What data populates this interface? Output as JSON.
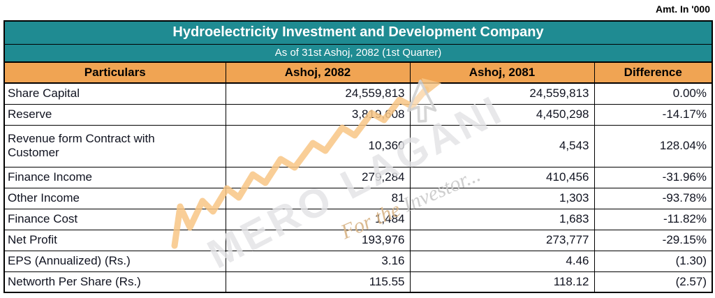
{
  "meta": {
    "amount_note": "Amt. In '000"
  },
  "table": {
    "title": "Hydroelectricity Investment and Development Company",
    "subtitle": "As of 31st Ashoj, 2082 (1st Quarter)",
    "columns": [
      "Particulars",
      "Ashoj, 2082",
      "Ashoj, 2081",
      "Difference"
    ],
    "rows": [
      {
        "label": "Share Capital",
        "v2082": "24,559,813",
        "v2081": "24,559,813",
        "diff": "0.00%"
      },
      {
        "label": "Reserve",
        "v2082": "3,819,608",
        "v2081": "4,450,298",
        "diff": "-14.17%"
      },
      {
        "label": "Revenue form Contract with Customer",
        "v2082": "10,360",
        "v2081": "4,543",
        "diff": "128.04%"
      },
      {
        "label": "Finance Income",
        "v2082": "279,284",
        "v2081": "410,456",
        "diff": "-31.96%"
      },
      {
        "label": "Other Income",
        "v2082": "81",
        "v2081": "1,303",
        "diff": "-93.78%"
      },
      {
        "label": "Finance Cost",
        "v2082": "1,484",
        "v2081": "1,683",
        "diff": "-11.82%"
      },
      {
        "label": "Net Profit",
        "v2082": "193,976",
        "v2081": "273,777",
        "diff": "-29.15%"
      },
      {
        "label": "EPS (Annualized) (Rs.)",
        "v2082": "3.16",
        "v2081": "4.46",
        "diff": "(1.30)"
      },
      {
        "label": "Networth Per Share (Rs.)",
        "v2082": "115.55",
        "v2081": "118.12",
        "diff": "(2.57)"
      }
    ]
  },
  "watermark": {
    "brand": "MERO LAGANI",
    "tagline_prefix": "For the ",
    "tagline_word": "Investor...",
    "icons": [
      "trend-arrow-icon",
      "cursor-arrow-icon"
    ]
  },
  "colors": {
    "teal": "#1F8B92",
    "orange": "#F0A453",
    "border": "#000000",
    "text": "#101320",
    "title_text": "#FFFFFF",
    "watermark_gray": "#E3E3E5",
    "watermark_orange": "#F8C685",
    "watermark_tan": "#D8B487"
  }
}
